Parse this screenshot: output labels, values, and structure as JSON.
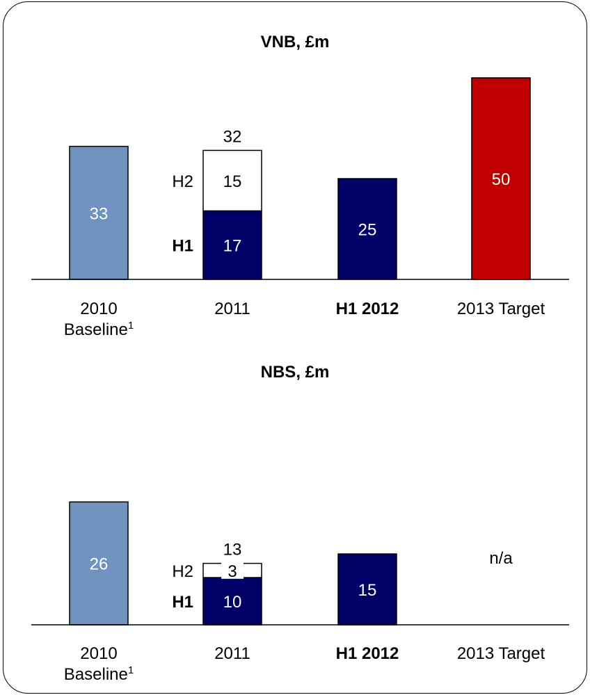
{
  "colors": {
    "baseline": "#7092be",
    "h1": "#000066",
    "h2": "#ffffff",
    "target": "#c00000",
    "axis": "#000000"
  },
  "chart_data": [
    {
      "type": "bar",
      "title": "VNB, £m",
      "ylim": [
        0,
        60
      ],
      "categories": [
        {
          "label_lines": [
            "2010",
            "Baseline"
          ],
          "superscript": "1",
          "bold": false
        },
        {
          "label_lines": [
            "2011"
          ],
          "bold": false
        },
        {
          "label_lines": [
            "H1 2012"
          ],
          "bold": true
        },
        {
          "label_lines": [
            "2013 Target"
          ],
          "bold": false
        }
      ],
      "series_labels": {
        "h1": "H1",
        "h2": "H2"
      },
      "bars": [
        {
          "category": 0,
          "value": 33,
          "color_key": "baseline",
          "label": "33",
          "label_color": "#ffffff"
        },
        {
          "category": 1,
          "stacked": true,
          "h1": 17,
          "h2": 15,
          "total": 32,
          "h1_label": "17",
          "h2_label": "15",
          "total_label": "32"
        },
        {
          "category": 2,
          "value": 25,
          "color_key": "h1",
          "label": "25",
          "label_color": "#ffffff"
        },
        {
          "category": 3,
          "value": 50,
          "color_key": "target",
          "label": "50",
          "label_color": "#ffffff"
        }
      ]
    },
    {
      "type": "bar",
      "title": "NBS, £m",
      "ylim": [
        0,
        60
      ],
      "categories": [
        {
          "label_lines": [
            "2010",
            "Baseline"
          ],
          "superscript": "1",
          "bold": false
        },
        {
          "label_lines": [
            "2011"
          ],
          "bold": false
        },
        {
          "label_lines": [
            "H1 2012"
          ],
          "bold": true
        },
        {
          "label_lines": [
            "2013 Target"
          ],
          "bold": false
        }
      ],
      "series_labels": {
        "h1": "H1",
        "h2": "H2"
      },
      "bars": [
        {
          "category": 0,
          "value": 26,
          "color_key": "baseline",
          "label": "26",
          "label_color": "#ffffff"
        },
        {
          "category": 1,
          "stacked": true,
          "h1": 10,
          "h2": 3,
          "total": 13,
          "h1_label": "10",
          "h2_label": "3",
          "total_label": "13"
        },
        {
          "category": 2,
          "value": 15,
          "color_key": "h1",
          "label": "15",
          "label_color": "#ffffff"
        },
        {
          "category": 3,
          "value": null,
          "label": "n/a",
          "label_color": "#000000"
        }
      ]
    }
  ]
}
